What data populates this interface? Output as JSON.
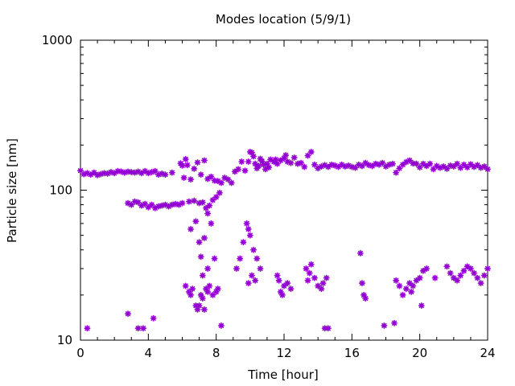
{
  "chart_data": {
    "type": "scatter",
    "title": "Modes location (5/9/1)",
    "xlabel": "Time [hour]",
    "ylabel": "Particle size [nm]",
    "xlim": [
      0,
      24
    ],
    "ylim": [
      10,
      1000
    ],
    "yscale": "log",
    "x_ticks": [
      "0",
      "4",
      "8",
      "12",
      "16",
      "20",
      "24"
    ],
    "y_ticks": [
      "10",
      "100",
      "1000"
    ],
    "grid": false,
    "marker": "*",
    "marker_color": "#9400d3",
    "points": [
      [
        0.0,
        135
      ],
      [
        0.2,
        128
      ],
      [
        0.4,
        130
      ],
      [
        0.6,
        127
      ],
      [
        0.8,
        131
      ],
      [
        1.0,
        126
      ],
      [
        1.2,
        128
      ],
      [
        1.4,
        130
      ],
      [
        1.6,
        129
      ],
      [
        1.8,
        132
      ],
      [
        2.0,
        130
      ],
      [
        2.2,
        134
      ],
      [
        2.4,
        133
      ],
      [
        2.6,
        131
      ],
      [
        2.8,
        133
      ],
      [
        3.0,
        132
      ],
      [
        3.2,
        131
      ],
      [
        3.4,
        133
      ],
      [
        3.6,
        130
      ],
      [
        3.8,
        134
      ],
      [
        4.0,
        130
      ],
      [
        4.2,
        132
      ],
      [
        4.4,
        134
      ],
      [
        4.6,
        127
      ],
      [
        4.8,
        129
      ],
      [
        5.0,
        127
      ],
      [
        5.4,
        131
      ],
      [
        5.9,
        151
      ],
      [
        6.0,
        146
      ],
      [
        6.1,
        121
      ],
      [
        6.2,
        161
      ],
      [
        6.3,
        147
      ],
      [
        6.5,
        118
      ],
      [
        6.7,
        139
      ],
      [
        6.9,
        153
      ],
      [
        7.1,
        127
      ],
      [
        7.3,
        158
      ],
      [
        7.5,
        119
      ],
      [
        7.7,
        123
      ],
      [
        7.9,
        116
      ],
      [
        8.1,
        115
      ],
      [
        8.3,
        112
      ],
      [
        8.5,
        121
      ],
      [
        8.7,
        118
      ],
      [
        8.9,
        112
      ],
      [
        9.1,
        133
      ],
      [
        9.3,
        138
      ],
      [
        9.5,
        155
      ],
      [
        9.7,
        135
      ],
      [
        9.9,
        155
      ],
      [
        10.0,
        180
      ],
      [
        10.1,
        178
      ],
      [
        10.2,
        168
      ],
      [
        10.3,
        150
      ],
      [
        10.4,
        140
      ],
      [
        10.5,
        145
      ],
      [
        10.6,
        162
      ],
      [
        10.7,
        156
      ],
      [
        10.8,
        148
      ],
      [
        10.9,
        138
      ],
      [
        11.0,
        150
      ],
      [
        11.1,
        142
      ],
      [
        11.2,
        160
      ],
      [
        11.4,
        155
      ],
      [
        11.5,
        160
      ],
      [
        11.6,
        150
      ],
      [
        11.8,
        158
      ],
      [
        12.0,
        163
      ],
      [
        12.1,
        171
      ],
      [
        12.2,
        155
      ],
      [
        12.4,
        152
      ],
      [
        12.6,
        165
      ],
      [
        12.8,
        150
      ],
      [
        13.0,
        152
      ],
      [
        13.2,
        143
      ],
      [
        13.4,
        170
      ],
      [
        13.6,
        180
      ],
      [
        13.8,
        148
      ],
      [
        14.0,
        140
      ],
      [
        14.2,
        144
      ],
      [
        14.4,
        147
      ],
      [
        14.6,
        143
      ],
      [
        14.8,
        148
      ],
      [
        15.0,
        146
      ],
      [
        15.2,
        143
      ],
      [
        15.4,
        148
      ],
      [
        15.6,
        144
      ],
      [
        15.8,
        146
      ],
      [
        16.0,
        143
      ],
      [
        16.2,
        141
      ],
      [
        16.4,
        148
      ],
      [
        16.6,
        145
      ],
      [
        16.8,
        152
      ],
      [
        17.0,
        147
      ],
      [
        17.2,
        145
      ],
      [
        17.4,
        150
      ],
      [
        17.6,
        148
      ],
      [
        17.8,
        152
      ],
      [
        18.0,
        144
      ],
      [
        18.2,
        148
      ],
      [
        18.4,
        150
      ],
      [
        18.6,
        131
      ],
      [
        18.8,
        140
      ],
      [
        19.0,
        148
      ],
      [
        19.2,
        154
      ],
      [
        19.4,
        158
      ],
      [
        19.6,
        151
      ],
      [
        19.8,
        150
      ],
      [
        20.0,
        142
      ],
      [
        20.2,
        150
      ],
      [
        20.4,
        145
      ],
      [
        20.6,
        150
      ],
      [
        20.8,
        138
      ],
      [
        21.0,
        145
      ],
      [
        21.2,
        141
      ],
      [
        21.4,
        144
      ],
      [
        21.6,
        139
      ],
      [
        21.8,
        146
      ],
      [
        22.0,
        144
      ],
      [
        22.2,
        150
      ],
      [
        22.4,
        141
      ],
      [
        22.6,
        148
      ],
      [
        22.8,
        142
      ],
      [
        23.0,
        149
      ],
      [
        23.2,
        143
      ],
      [
        23.4,
        147
      ],
      [
        23.6,
        141
      ],
      [
        23.8,
        144
      ],
      [
        24.0,
        138
      ],
      [
        2.8,
        82
      ],
      [
        3.0,
        80
      ],
      [
        3.2,
        84
      ],
      [
        3.4,
        83
      ],
      [
        3.6,
        79
      ],
      [
        3.8,
        81
      ],
      [
        4.0,
        77
      ],
      [
        4.2,
        80
      ],
      [
        4.4,
        76
      ],
      [
        4.6,
        78
      ],
      [
        4.8,
        79
      ],
      [
        5.0,
        80
      ],
      [
        5.2,
        78
      ],
      [
        5.4,
        80
      ],
      [
        5.6,
        81
      ],
      [
        5.8,
        80
      ],
      [
        6.0,
        82
      ],
      [
        6.4,
        84
      ],
      [
        6.7,
        85
      ],
      [
        7.0,
        82
      ],
      [
        7.2,
        83
      ],
      [
        7.4,
        76
      ],
      [
        7.6,
        79
      ],
      [
        7.8,
        86
      ],
      [
        8.0,
        90
      ],
      [
        8.2,
        96
      ],
      [
        6.5,
        55
      ],
      [
        6.8,
        62
      ],
      [
        7.0,
        45
      ],
      [
        7.3,
        48
      ],
      [
        7.5,
        70
      ],
      [
        7.7,
        60
      ],
      [
        6.2,
        23
      ],
      [
        6.4,
        21
      ],
      [
        6.5,
        20
      ],
      [
        6.6,
        22
      ],
      [
        6.8,
        17
      ],
      [
        6.9,
        16
      ],
      [
        7.0,
        17
      ],
      [
        7.1,
        20
      ],
      [
        7.2,
        19
      ],
      [
        7.3,
        16
      ],
      [
        7.4,
        22
      ],
      [
        7.5,
        21
      ],
      [
        7.6,
        23
      ],
      [
        7.8,
        20
      ],
      [
        8.0,
        21
      ],
      [
        8.1,
        22
      ],
      [
        7.2,
        27
      ],
      [
        7.5,
        30
      ],
      [
        7.9,
        35
      ],
      [
        7.1,
        36
      ],
      [
        9.2,
        30
      ],
      [
        9.4,
        35
      ],
      [
        9.6,
        45
      ],
      [
        9.8,
        60
      ],
      [
        9.9,
        55
      ],
      [
        10.0,
        50
      ],
      [
        10.2,
        40
      ],
      [
        10.4,
        35
      ],
      [
        10.6,
        30
      ],
      [
        10.1,
        27
      ],
      [
        10.3,
        25
      ],
      [
        9.9,
        24
      ],
      [
        11.6,
        27
      ],
      [
        11.7,
        25
      ],
      [
        11.8,
        21
      ],
      [
        11.9,
        20
      ],
      [
        12.0,
        23
      ],
      [
        12.2,
        24
      ],
      [
        12.4,
        22
      ],
      [
        13.3,
        30
      ],
      [
        13.4,
        25
      ],
      [
        13.5,
        28
      ],
      [
        13.6,
        32
      ],
      [
        13.8,
        26
      ],
      [
        14.0,
        23
      ],
      [
        14.2,
        22
      ],
      [
        14.3,
        24
      ],
      [
        14.5,
        26
      ],
      [
        16.5,
        38
      ],
      [
        16.6,
        24
      ],
      [
        16.7,
        20
      ],
      [
        16.8,
        19
      ],
      [
        18.6,
        25
      ],
      [
        18.8,
        23
      ],
      [
        19.0,
        20
      ],
      [
        19.2,
        22
      ],
      [
        19.4,
        24
      ],
      [
        19.6,
        23
      ],
      [
        19.8,
        25
      ],
      [
        20.0,
        26
      ],
      [
        20.2,
        29
      ],
      [
        20.4,
        30
      ],
      [
        19.5,
        21
      ],
      [
        20.1,
        17
      ],
      [
        20.9,
        26
      ],
      [
        21.6,
        31
      ],
      [
        21.8,
        28
      ],
      [
        22.0,
        26
      ],
      [
        22.2,
        25
      ],
      [
        22.4,
        27
      ],
      [
        22.6,
        29
      ],
      [
        22.8,
        31
      ],
      [
        23.0,
        30
      ],
      [
        23.2,
        28
      ],
      [
        23.4,
        26
      ],
      [
        23.6,
        24
      ],
      [
        23.8,
        27
      ],
      [
        24.0,
        30
      ],
      [
        0.4,
        12
      ],
      [
        2.8,
        15
      ],
      [
        3.4,
        12
      ],
      [
        3.7,
        12
      ],
      [
        4.3,
        14
      ],
      [
        8.3,
        12.5
      ],
      [
        14.4,
        12
      ],
      [
        14.6,
        12
      ],
      [
        17.9,
        12.5
      ],
      [
        18.5,
        13
      ]
    ]
  }
}
